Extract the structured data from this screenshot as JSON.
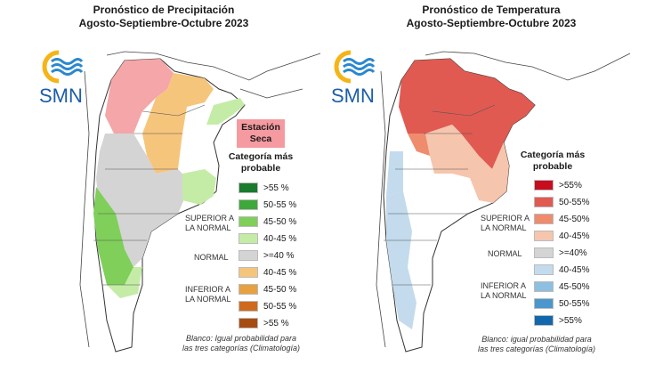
{
  "precipitation": {
    "title_line1": "Pronóstico de Precipitación",
    "title_line2": "Agosto-Septiembre-Octubre 2023",
    "logo_text": "SMN",
    "dry_season_line1": "Estación",
    "dry_season_line2": "Seca",
    "legend_title_line1": "Categoría más",
    "legend_title_line2": "probable",
    "groups": {
      "above_1": "SUPERIOR A",
      "above_2": "LA NORMAL",
      "normal": "NORMAL",
      "below_1": "INFERIOR A",
      "below_2": "LA NORMAL"
    },
    "legend": [
      {
        "label": ">55 %",
        "color": "#1a7a2e"
      },
      {
        "label": "50-55 %",
        "color": "#3ea83a"
      },
      {
        "label": "45-50 %",
        "color": "#7fcf5a"
      },
      {
        "label": "40-45 %",
        "color": "#c4eca6"
      },
      {
        "label": ">=40 %",
        "color": "#d4d4d4"
      },
      {
        "label": "40-45 %",
        "color": "#f6c57c"
      },
      {
        "label": "45-50 %",
        "color": "#e8a141"
      },
      {
        "label": "50-55 %",
        "color": "#cf6a1d"
      },
      {
        "label": ">55 %",
        "color": "#a84d12"
      }
    ],
    "note_line1": "Blanco: Igual probabilidad para",
    "note_line2": "las tres categorías (Climatología)"
  },
  "temperature": {
    "title_line1": "Pronóstico de Temperatura",
    "title_line2": "Agosto-Septiembre-Octubre 2023",
    "logo_text": "SMN",
    "legend_title_line1": "Categoría más",
    "legend_title_line2": "probable",
    "groups": {
      "above_1": "SUPERIOR A",
      "above_2": "LA NORMAL",
      "normal": "NORMAL",
      "below_1": "INFERIOR A",
      "below_2": "LA NORMAL"
    },
    "legend": [
      {
        "label": ">55%",
        "color": "#c80d1f"
      },
      {
        "label": "50-55%",
        "color": "#e05a52"
      },
      {
        "label": "45-50%",
        "color": "#ee8c6d"
      },
      {
        "label": "40-45%",
        "color": "#f6c5ad"
      },
      {
        "label": ">=40%",
        "color": "#d4d4d4"
      },
      {
        "label": "40-45%",
        "color": "#c3dbec"
      },
      {
        "label": "45-50%",
        "color": "#8dbfe0"
      },
      {
        "label": "50-55%",
        "color": "#4b97cd"
      },
      {
        "label": ">55%",
        "color": "#1268ad"
      }
    ],
    "note_line1": "Blanco: igual probabilidad para",
    "note_line2": "las tres categorías (Climatología)"
  }
}
